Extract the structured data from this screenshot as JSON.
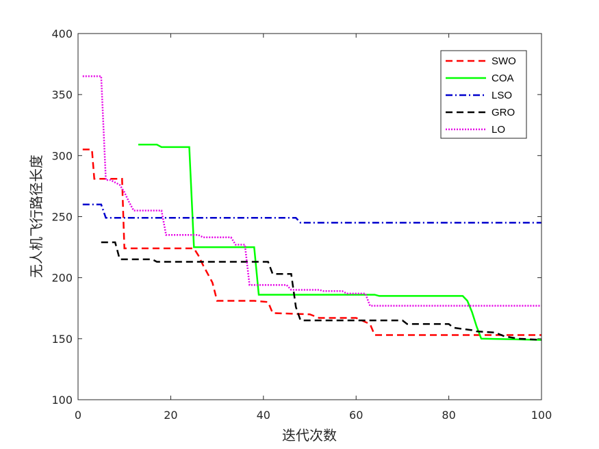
{
  "chart_data": {
    "type": "line",
    "title": "",
    "xlabel": "迭代次数",
    "ylabel": "无人机飞行路径长度",
    "xlim": [
      0,
      100
    ],
    "ylim": [
      100,
      400
    ],
    "xticks": [
      0,
      20,
      40,
      60,
      80,
      100
    ],
    "yticks": [
      100,
      150,
      200,
      250,
      300,
      350,
      400
    ],
    "grid": false,
    "legend_position": "top-right",
    "series": [
      {
        "name": "SWO",
        "color": "#ff0000",
        "dash": "dashed",
        "x": [
          1,
          3,
          3.5,
          9.5,
          10,
          25,
          26,
          27,
          28,
          29,
          30,
          38,
          41,
          42,
          50,
          52,
          60,
          63,
          64,
          100
        ],
        "y": [
          305,
          305,
          281,
          281,
          224,
          224,
          218,
          210,
          203,
          196,
          181,
          181,
          180,
          171,
          170,
          167,
          167,
          162,
          153,
          153
        ]
      },
      {
        "name": "COA",
        "color": "#00ff00",
        "dash": "solid",
        "x": [
          13,
          17,
          18,
          24,
          25,
          38,
          39,
          64,
          65,
          83,
          84,
          85,
          86,
          87,
          100
        ],
        "y": [
          309,
          309,
          307,
          307,
          225,
          225,
          186,
          186,
          185,
          185,
          181,
          172,
          160,
          150,
          149
        ]
      },
      {
        "name": "LSO",
        "color": "#0000cd",
        "dash": "dashdot",
        "x": [
          1,
          5,
          6,
          47,
          48,
          100
        ],
        "y": [
          260,
          260,
          249,
          249,
          245,
          245
        ]
      },
      {
        "name": "GRO",
        "color": "#000000",
        "dash": "dashed",
        "x": [
          5,
          8,
          9,
          16,
          17,
          41,
          42,
          46,
          47,
          48,
          70,
          71,
          80,
          81,
          85,
          86,
          90,
          92,
          95,
          100
        ],
        "y": [
          229,
          229,
          215,
          215,
          213,
          213,
          203,
          203,
          176,
          165,
          165,
          162,
          162,
          159,
          157,
          156,
          155,
          152,
          150,
          149
        ]
      },
      {
        "name": "LO",
        "color": "#e600e6",
        "dash": "dotted",
        "x": [
          1,
          5,
          6,
          7,
          8,
          9,
          10,
          11,
          12,
          18,
          19,
          26,
          27,
          33,
          34,
          36,
          37,
          45,
          46,
          52,
          53,
          57,
          58,
          62,
          63,
          100
        ],
        "y": [
          365,
          365,
          280,
          280,
          278,
          276,
          270,
          262,
          255,
          255,
          235,
          235,
          233,
          233,
          227,
          227,
          194,
          194,
          190,
          190,
          189,
          189,
          187,
          187,
          177,
          177
        ]
      }
    ]
  }
}
